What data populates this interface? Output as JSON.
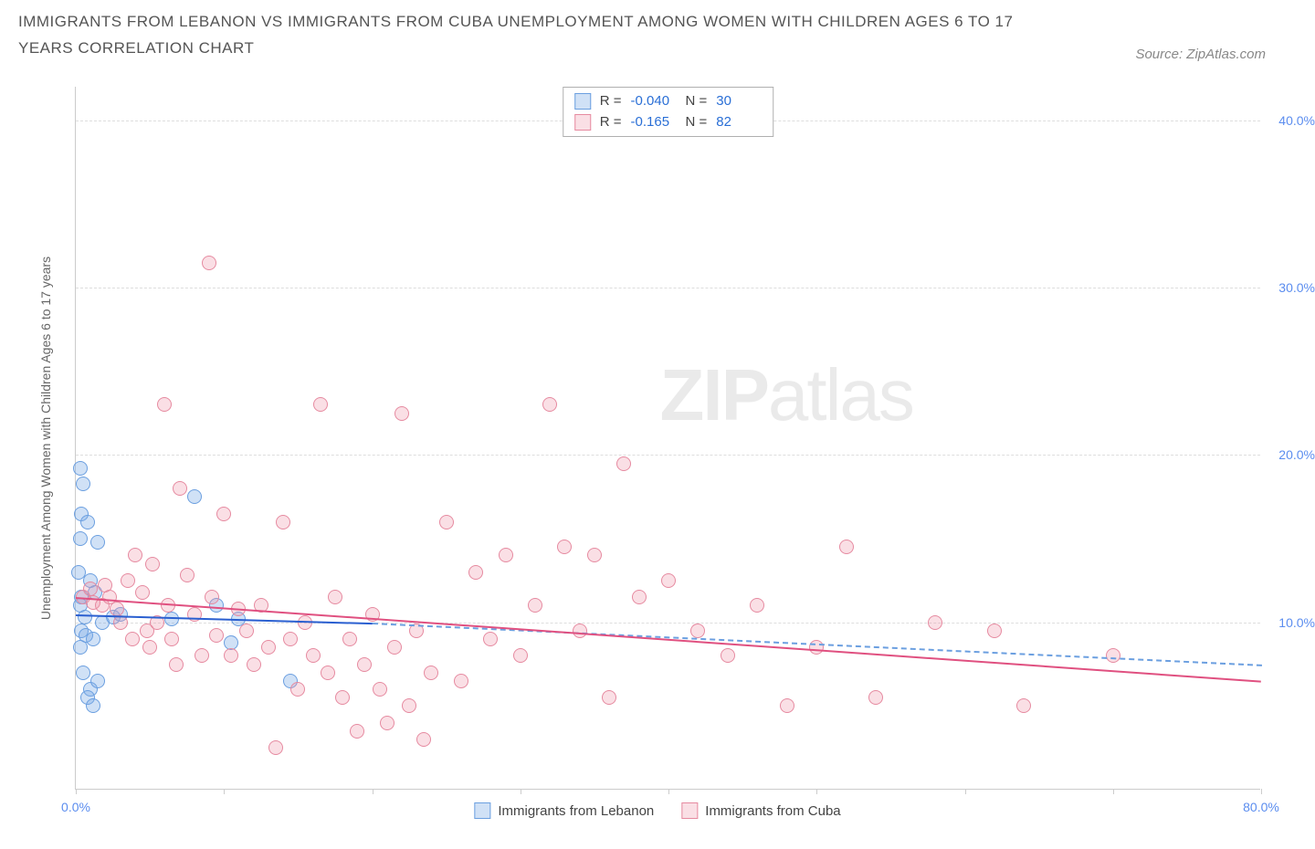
{
  "title": "IMMIGRANTS FROM LEBANON VS IMMIGRANTS FROM CUBA UNEMPLOYMENT AMONG WOMEN WITH CHILDREN AGES 6 TO 17 YEARS CORRELATION CHART",
  "source": "Source: ZipAtlas.com",
  "yaxis_label": "Unemployment Among Women with Children Ages 6 to 17 years",
  "watermark_a": "ZIP",
  "watermark_b": "atlas",
  "chart": {
    "type": "scatter",
    "xlim": [
      0,
      80
    ],
    "ylim": [
      0,
      42
    ],
    "x_ticks": [
      0,
      10,
      20,
      30,
      40,
      50,
      60,
      70,
      80
    ],
    "x_tick_labels": {
      "0": "0.0%",
      "80": "80.0%"
    },
    "y_ticks": [
      10,
      20,
      30,
      40
    ],
    "y_tick_labels": [
      "10.0%",
      "20.0%",
      "30.0%",
      "40.0%"
    ],
    "background_color": "#ffffff",
    "grid_color": "#dddddd",
    "marker_radius": 8,
    "marker_border_width": 1.2,
    "series": [
      {
        "id": "lebanon",
        "label": "Immigrants from Lebanon",
        "fill": "rgba(120,170,230,0.35)",
        "stroke": "#6b9fe0",
        "r_value": "-0.040",
        "n_value": "30",
        "trend": {
          "x1": 0,
          "y1": 10.5,
          "x2": 20,
          "y2": 10.0,
          "color": "#2a5fd0",
          "solid": true
        },
        "trend_ext": {
          "x1": 20,
          "y1": 10.0,
          "x2": 80,
          "y2": 7.5,
          "color": "#6b9fe0",
          "solid": false
        },
        "points": [
          [
            0.3,
            19.2
          ],
          [
            0.5,
            18.3
          ],
          [
            0.4,
            16.5
          ],
          [
            0.8,
            16.0
          ],
          [
            0.3,
            15.0
          ],
          [
            1.5,
            14.8
          ],
          [
            0.2,
            13.0
          ],
          [
            1.0,
            12.5
          ],
          [
            0.4,
            11.5
          ],
          [
            1.3,
            11.8
          ],
          [
            0.3,
            11.0
          ],
          [
            0.6,
            10.3
          ],
          [
            1.8,
            10.0
          ],
          [
            0.4,
            9.5
          ],
          [
            0.7,
            9.2
          ],
          [
            1.2,
            9.0
          ],
          [
            0.3,
            8.5
          ],
          [
            2.5,
            10.3
          ],
          [
            3.0,
            10.5
          ],
          [
            6.5,
            10.2
          ],
          [
            8.0,
            17.5
          ],
          [
            9.5,
            11.0
          ],
          [
            10.5,
            8.8
          ],
          [
            11.0,
            10.2
          ],
          [
            14.5,
            6.5
          ],
          [
            0.5,
            7.0
          ],
          [
            1.0,
            6.0
          ],
          [
            1.5,
            6.5
          ],
          [
            0.8,
            5.5
          ],
          [
            1.2,
            5.0
          ]
        ]
      },
      {
        "id": "cuba",
        "label": "Immigrants from Cuba",
        "fill": "rgba(240,150,170,0.30)",
        "stroke": "#e68aa0",
        "r_value": "-0.165",
        "n_value": "82",
        "trend": {
          "x1": 0,
          "y1": 11.5,
          "x2": 80,
          "y2": 6.5,
          "color": "#e05080",
          "solid": true
        },
        "points": [
          [
            0.5,
            11.5
          ],
          [
            1.0,
            12.0
          ],
          [
            1.2,
            11.2
          ],
          [
            1.8,
            11.0
          ],
          [
            2.0,
            12.2
          ],
          [
            2.3,
            11.5
          ],
          [
            2.8,
            10.8
          ],
          [
            3.0,
            10.0
          ],
          [
            3.5,
            12.5
          ],
          [
            3.8,
            9.0
          ],
          [
            4.0,
            14.0
          ],
          [
            4.5,
            11.8
          ],
          [
            4.8,
            9.5
          ],
          [
            5.0,
            8.5
          ],
          [
            5.2,
            13.5
          ],
          [
            5.5,
            10.0
          ],
          [
            6.0,
            23.0
          ],
          [
            6.2,
            11.0
          ],
          [
            6.5,
            9.0
          ],
          [
            6.8,
            7.5
          ],
          [
            7.0,
            18.0
          ],
          [
            7.5,
            12.8
          ],
          [
            8.0,
            10.5
          ],
          [
            8.5,
            8.0
          ],
          [
            9.0,
            31.5
          ],
          [
            9.2,
            11.5
          ],
          [
            9.5,
            9.2
          ],
          [
            10.0,
            16.5
          ],
          [
            10.5,
            8.0
          ],
          [
            11.0,
            10.8
          ],
          [
            11.5,
            9.5
          ],
          [
            12.0,
            7.5
          ],
          [
            12.5,
            11.0
          ],
          [
            13.0,
            8.5
          ],
          [
            13.5,
            2.5
          ],
          [
            14.0,
            16.0
          ],
          [
            14.5,
            9.0
          ],
          [
            15.0,
            6.0
          ],
          [
            15.5,
            10.0
          ],
          [
            16.0,
            8.0
          ],
          [
            16.5,
            23.0
          ],
          [
            17.0,
            7.0
          ],
          [
            17.5,
            11.5
          ],
          [
            18.0,
            5.5
          ],
          [
            18.5,
            9.0
          ],
          [
            19.0,
            3.5
          ],
          [
            19.5,
            7.5
          ],
          [
            20.0,
            10.5
          ],
          [
            20.5,
            6.0
          ],
          [
            21.0,
            4.0
          ],
          [
            21.5,
            8.5
          ],
          [
            22.0,
            22.5
          ],
          [
            22.5,
            5.0
          ],
          [
            23.0,
            9.5
          ],
          [
            23.5,
            3.0
          ],
          [
            24.0,
            7.0
          ],
          [
            25.0,
            16.0
          ],
          [
            26.0,
            6.5
          ],
          [
            27.0,
            13.0
          ],
          [
            28.0,
            9.0
          ],
          [
            29.0,
            14.0
          ],
          [
            30.0,
            8.0
          ],
          [
            31.0,
            11.0
          ],
          [
            32.0,
            23.0
          ],
          [
            33.0,
            14.5
          ],
          [
            34.0,
            9.5
          ],
          [
            35.0,
            14.0
          ],
          [
            36.0,
            5.5
          ],
          [
            37.0,
            19.5
          ],
          [
            38.0,
            11.5
          ],
          [
            40.0,
            12.5
          ],
          [
            42.0,
            9.5
          ],
          [
            44.0,
            8.0
          ],
          [
            46.0,
            11.0
          ],
          [
            48.0,
            5.0
          ],
          [
            50.0,
            8.5
          ],
          [
            52.0,
            14.5
          ],
          [
            54.0,
            5.5
          ],
          [
            58.0,
            10.0
          ],
          [
            62.0,
            9.5
          ],
          [
            64.0,
            5.0
          ],
          [
            70.0,
            8.0
          ]
        ]
      }
    ]
  }
}
